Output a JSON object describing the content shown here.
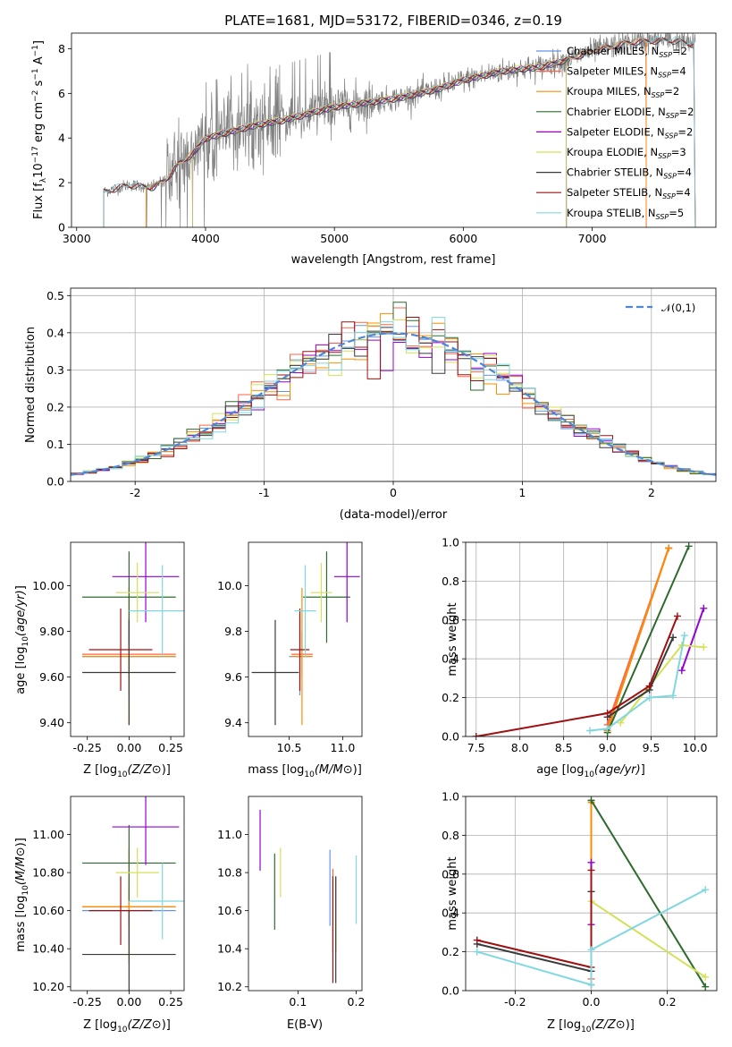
{
  "figure_title": "PLATE=1681, MJD=53172, FIBERID=0346, z=0.19",
  "colors": {
    "data": "#808080",
    "models": [
      "#6495ed",
      "#ff6347",
      "#ff8c00",
      "#2e6b2e",
      "#9400d3",
      "#d4e157",
      "#3a3a3a",
      "#a01010",
      "#7fd7e0"
    ],
    "normal": "#4e86d8"
  },
  "chart_data": [
    {
      "id": "spectrum",
      "type": "line",
      "xlabel": "wavelength [Angstrom, rest frame]",
      "ylabel": "Flux [f_λ 10^-17 erg cm^-2 s^-1 A^-1]",
      "xlim": [
        2960,
        7960
      ],
      "ylim": [
        0,
        8.7
      ],
      "xticks": [
        3000,
        4000,
        5000,
        6000,
        7000
      ],
      "yticks": [
        0,
        2,
        4,
        6,
        8
      ],
      "data_range": [
        3210,
        7800
      ],
      "continuum": [
        [
          3210,
          1.6
        ],
        [
          3400,
          1.9
        ],
        [
          3600,
          1.8
        ],
        [
          3700,
          2.2
        ],
        [
          3800,
          2.9
        ],
        [
          3900,
          3.3
        ],
        [
          4000,
          4.0
        ],
        [
          4200,
          4.3
        ],
        [
          4400,
          4.6
        ],
        [
          4600,
          4.8
        ],
        [
          4800,
          5.1
        ],
        [
          5000,
          5.4
        ],
        [
          5200,
          5.55
        ],
        [
          5500,
          5.8
        ],
        [
          5800,
          6.2
        ],
        [
          6000,
          6.6
        ],
        [
          6300,
          7.0
        ],
        [
          6600,
          7.2
        ],
        [
          6800,
          7.5
        ],
        [
          7000,
          7.9
        ],
        [
          7300,
          8.3
        ],
        [
          7600,
          8.4
        ],
        [
          7800,
          8.2
        ]
      ],
      "legend": [
        "Chabrier MILES, N_SSP=2",
        "Salpeter MILES, N_SSP=4",
        "Kroupa MILES, N_SSP=2",
        "Chabrier ELODIE, N_SSP=2",
        "Salpeter ELODIE, N_SSP=2",
        "Kroupa ELODIE, N_SSP=3",
        "Chabrier STELIB, N_SSP=4",
        "Salpeter STELIB, N_SSP=4",
        "Kroupa STELIB, N_SSP=5"
      ],
      "model_ranges": [
        [
          3540,
          7420
        ],
        [
          3540,
          7420
        ],
        [
          3540,
          7420
        ],
        [
          3900,
          6800
        ],
        [
          3900,
          6800
        ],
        [
          3900,
          6800
        ],
        [
          3210,
          7800
        ],
        [
          3210,
          7800
        ],
        [
          3210,
          7800
        ]
      ]
    },
    {
      "id": "residuals",
      "type": "line",
      "xlabel": "(data-model)/error",
      "ylabel": "Normed distribution",
      "xlim": [
        -2.5,
        2.5
      ],
      "ylim": [
        0,
        0.52
      ],
      "xticks": [
        -2,
        -1,
        0,
        1,
        2
      ],
      "yticks": [
        0.0,
        0.1,
        0.2,
        0.3,
        0.4,
        0.5
      ],
      "legend": [
        "𝒩(0,1)"
      ],
      "bin_width": 0.1
    },
    {
      "id": "age-vs-Z",
      "type": "scatter",
      "xlabel": "Z [log10(Z/Z⊙)]",
      "ylabel": "age [log10(age/yr)]",
      "xlim": [
        -0.35,
        0.33
      ],
      "ylim": [
        9.34,
        10.19
      ],
      "xticks": [
        -0.25,
        0.0,
        0.25
      ],
      "yticks": [
        9.4,
        9.6,
        9.8,
        10.0
      ],
      "points": [
        [
          0.0,
          9.69,
          0.28,
          0.12,
          0.17
        ],
        [
          0.0,
          9.7,
          0.28,
          0.12,
          0.1
        ],
        [
          0.0,
          9.69,
          0.28,
          0.12,
          0.3
        ],
        [
          0.0,
          9.95,
          0.28,
          0.12,
          0.2
        ],
        [
          0.1,
          10.04,
          0.2,
          0.12,
          0.2
        ],
        [
          0.05,
          9.97,
          0.13,
          0.12,
          0.13
        ],
        [
          0.0,
          9.62,
          0.28,
          0.12,
          0.23
        ],
        [
          -0.05,
          9.72,
          0.19,
          0.14,
          0.18
        ],
        [
          0.2,
          9.89,
          0.2,
          0.12,
          0.2
        ]
      ]
    },
    {
      "id": "age-vs-mass",
      "type": "scatter",
      "xlabel": "mass [log10(M/M⊙)]",
      "ylabel": "",
      "xlim": [
        10.12,
        11.18
      ],
      "ylim": [
        9.34,
        10.19
      ],
      "xticks": [
        10.5,
        11.0
      ],
      "yticks": [
        9.4,
        9.6,
        9.8,
        10.0
      ],
      "points": [
        [
          10.6,
          9.69,
          0.1,
          0.12,
          0.17
        ],
        [
          10.62,
          9.7,
          0.1,
          0.12,
          0.1
        ],
        [
          10.62,
          9.69,
          0.1,
          0.12,
          0.3
        ],
        [
          10.85,
          9.95,
          0.22,
          0.12,
          0.2
        ],
        [
          11.04,
          10.04,
          0.12,
          0.12,
          0.2
        ],
        [
          10.8,
          9.97,
          0.1,
          0.12,
          0.13
        ],
        [
          10.37,
          9.62,
          0.22,
          0.12,
          0.23
        ],
        [
          10.6,
          9.72,
          0.09,
          0.14,
          0.18
        ],
        [
          10.65,
          9.89,
          0.1,
          0.12,
          0.2
        ]
      ]
    },
    {
      "id": "weight-vs-age",
      "type": "line",
      "xlabel": "age [log10(age/yr)]",
      "ylabel": "mass weight",
      "xlim": [
        7.38,
        10.25
      ],
      "ylim": [
        0,
        1.0
      ],
      "xticks": [
        7.5,
        8.0,
        8.5,
        9.0,
        9.5,
        10.0
      ],
      "yticks": [
        0.0,
        0.2,
        0.4,
        0.6,
        0.8,
        1.0
      ],
      "series": [
        {
          "name": "Chabrier MILES, N_SSP=2",
          "points": [
            [
              9.0,
              0.03
            ],
            [
              9.7,
              0.97
            ]
          ]
        },
        {
          "name": "Salpeter MILES, N_SSP=4",
          "points": [
            [
              9.0,
              0.06
            ],
            [
              9.7,
              0.97
            ]
          ]
        },
        {
          "name": "Kroupa MILES, N_SSP=2",
          "points": [
            [
              9.0,
              0.03
            ],
            [
              9.7,
              0.97
            ]
          ]
        },
        {
          "name": "Chabrier ELODIE, N_SSP=2",
          "points": [
            [
              9.0,
              0.02
            ],
            [
              9.93,
              0.98
            ]
          ]
        },
        {
          "name": "Salpeter ELODIE, N_SSP=2",
          "points": [
            [
              9.85,
              0.34
            ],
            [
              10.1,
              0.66
            ]
          ]
        },
        {
          "name": "Kroupa ELODIE, N_SSP=3",
          "points": [
            [
              9.15,
              0.07
            ],
            [
              9.85,
              0.47
            ],
            [
              10.1,
              0.46
            ]
          ]
        },
        {
          "name": "Chabrier STELIB, N_SSP=4",
          "points": [
            [
              9.0,
              0.1
            ],
            [
              9.48,
              0.24
            ],
            [
              9.75,
              0.51
            ]
          ]
        },
        {
          "name": "Salpeter STELIB, N_SSP=4",
          "points": [
            [
              7.5,
              0.0
            ],
            [
              9.0,
              0.12
            ],
            [
              9.48,
              0.26
            ],
            [
              9.8,
              0.62
            ]
          ]
        },
        {
          "name": "Kroupa STELIB, N_SSP=5",
          "points": [
            [
              8.8,
              0.03
            ],
            [
              9.0,
              0.04
            ],
            [
              9.48,
              0.2
            ],
            [
              9.75,
              0.21
            ],
            [
              9.88,
              0.52
            ]
          ]
        }
      ]
    },
    {
      "id": "mass-vs-Z",
      "type": "scatter",
      "xlabel": "Z [log10(Z/Z⊙)]",
      "ylabel": "mass [log10(M/M⊙)]",
      "xlim": [
        -0.35,
        0.33
      ],
      "ylim": [
        10.18,
        11.2
      ],
      "xticks": [
        -0.25,
        0.0,
        0.25
      ],
      "yticks": [
        10.2,
        10.4,
        10.6,
        10.8,
        11.0
      ],
      "points": [
        [
          0.0,
          10.6,
          0.28,
          0.12,
          0.17
        ],
        [
          0.0,
          10.62,
          0.28,
          0.12,
          0.1
        ],
        [
          0.0,
          10.62,
          0.28,
          0.12,
          0.3
        ],
        [
          0.0,
          10.85,
          0.28,
          0.12,
          0.2
        ],
        [
          0.1,
          11.04,
          0.2,
          0.12,
          0.2
        ],
        [
          0.05,
          10.8,
          0.13,
          0.12,
          0.13
        ],
        [
          0.0,
          10.37,
          0.28,
          0.12,
          0.23
        ],
        [
          -0.05,
          10.6,
          0.19,
          0.14,
          0.18
        ],
        [
          0.2,
          10.65,
          0.2,
          0.12,
          0.2
        ]
      ]
    },
    {
      "id": "mass-vs-EBV",
      "type": "scatter",
      "xlabel": "E(B-V)",
      "ylabel": "",
      "xlim": [
        0.015,
        0.21
      ],
      "ylim": [
        10.18,
        11.2
      ],
      "xticks": [
        0.1,
        0.2
      ],
      "yticks": [
        10.2,
        10.4,
        10.6,
        10.8,
        11.0
      ],
      "points": [
        [
          0.155,
          10.72,
          0.2
        ],
        [
          0.16,
          10.6,
          0.22
        ],
        [
          0.165,
          10.58,
          0.2
        ],
        [
          0.06,
          10.7,
          0.2
        ],
        [
          0.035,
          10.97,
          0.16
        ],
        [
          0.07,
          10.8,
          0.13
        ],
        [
          0.165,
          10.5,
          0.28
        ],
        [
          0.16,
          10.5,
          0.28
        ],
        [
          0.2,
          10.71,
          0.18
        ]
      ]
    },
    {
      "id": "weight-vs-Z",
      "type": "line",
      "xlabel": "Z [log10(Z/Z⊙)]",
      "ylabel": "mass weight",
      "xlim": [
        -0.33,
        0.33
      ],
      "ylim": [
        0,
        1.0
      ],
      "xticks": [
        -0.2,
        0.0,
        0.2
      ],
      "yticks": [
        0.0,
        0.2,
        0.4,
        0.6,
        0.8,
        1.0
      ],
      "series": [
        {
          "name": "Chabrier MILES, N_SSP=2",
          "points": [
            [
              0.0,
              0.03
            ],
            [
              0.0,
              0.97
            ]
          ]
        },
        {
          "name": "Salpeter MILES, N_SSP=4",
          "points": [
            [
              0.0,
              0.06
            ],
            [
              0.0,
              0.97
            ]
          ]
        },
        {
          "name": "Kroupa MILES, N_SSP=2",
          "points": [
            [
              0.0,
              0.03
            ],
            [
              0.0,
              0.97
            ]
          ]
        },
        {
          "name": "Chabrier ELODIE, N_SSP=2",
          "points": [
            [
              0.0,
              0.98
            ],
            [
              0.3,
              0.02
            ]
          ]
        },
        {
          "name": "Salpeter ELODIE, N_SSP=2",
          "points": [
            [
              0.0,
              0.34
            ],
            [
              0.0,
              0.66
            ]
          ]
        },
        {
          "name": "Kroupa ELODIE, N_SSP=3",
          "points": [
            [
              0.0,
              0.46
            ],
            [
              0.3,
              0.07
            ]
          ]
        },
        {
          "name": "Chabrier STELIB, N_SSP=4",
          "points": [
            [
              -0.3,
              0.24
            ],
            [
              0.0,
              0.1
            ],
            [
              0.0,
              0.51
            ]
          ]
        },
        {
          "name": "Salpeter STELIB, N_SSP=4",
          "points": [
            [
              -0.3,
              0.26
            ],
            [
              0.0,
              0.12
            ],
            [
              0.0,
              0.62
            ]
          ]
        },
        {
          "name": "Kroupa STELIB, N_SSP=5",
          "points": [
            [
              -0.3,
              0.2
            ],
            [
              0.0,
              0.03
            ],
            [
              0.0,
              0.21
            ],
            [
              0.3,
              0.52
            ]
          ]
        }
      ]
    }
  ]
}
